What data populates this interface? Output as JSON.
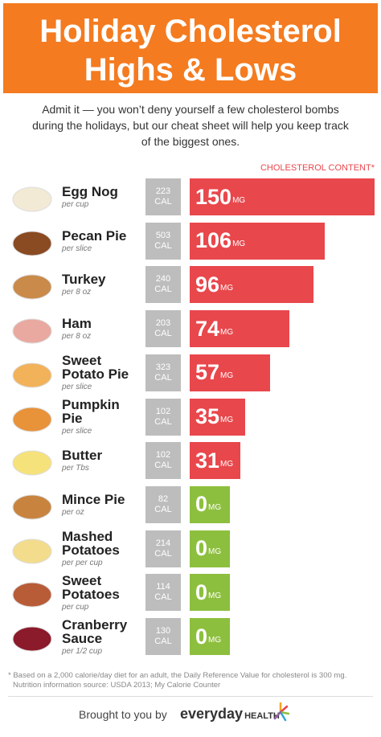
{
  "chart_data": {
    "type": "bar",
    "title": [
      "Holiday Cholesterol",
      "Highs & Lows"
    ],
    "subtitle": "Admit it — you won’t deny yourself a few cholesterol bombs during the holidays, but our cheat sheet will help you keep track of the biggest ones.",
    "value_axis_label": "CHOLESTEROL CONTENT*",
    "categories": [
      "Egg Nog",
      "Pecan Pie",
      "Turkey",
      "Ham",
      "Sweet Potato Pie",
      "Pumpkin Pie",
      "Butter",
      "Mince Pie",
      "Mashed Potatoes",
      "Sweet Potatoes",
      "Cranberry Sauce"
    ],
    "portions": [
      "per cup",
      "per slice",
      "per 8 oz",
      "per 8 oz",
      "per slice",
      "per slice",
      "per Tbs",
      "per oz",
      "per per cup",
      "per cup",
      "per 1/2 cup"
    ],
    "calories": [
      223,
      503,
      240,
      203,
      323,
      102,
      102,
      82,
      214,
      114,
      130
    ],
    "calorie_unit": "CAL",
    "values": [
      150,
      106,
      96,
      74,
      57,
      35,
      31,
      0,
      0,
      0,
      0
    ],
    "value_unit": "MG",
    "bar_colors": [
      "#e8474c",
      "#e8474c",
      "#e8474c",
      "#e8474c",
      "#e8474c",
      "#e8474c",
      "#e8474c",
      "#8dbf3e",
      "#8dbf3e",
      "#8dbf3e",
      "#8dbf3e"
    ],
    "footnote": "* Based on a 2,000 calorie/day diet for an adult, the Daily Reference Value for cholesterol is 300 mg.",
    "source": "Nutrition information source: USDA 2013; My Calorie Counter",
    "credit": "Brought to you by",
    "brand": [
      "everyday",
      "HEALTH"
    ]
  }
}
